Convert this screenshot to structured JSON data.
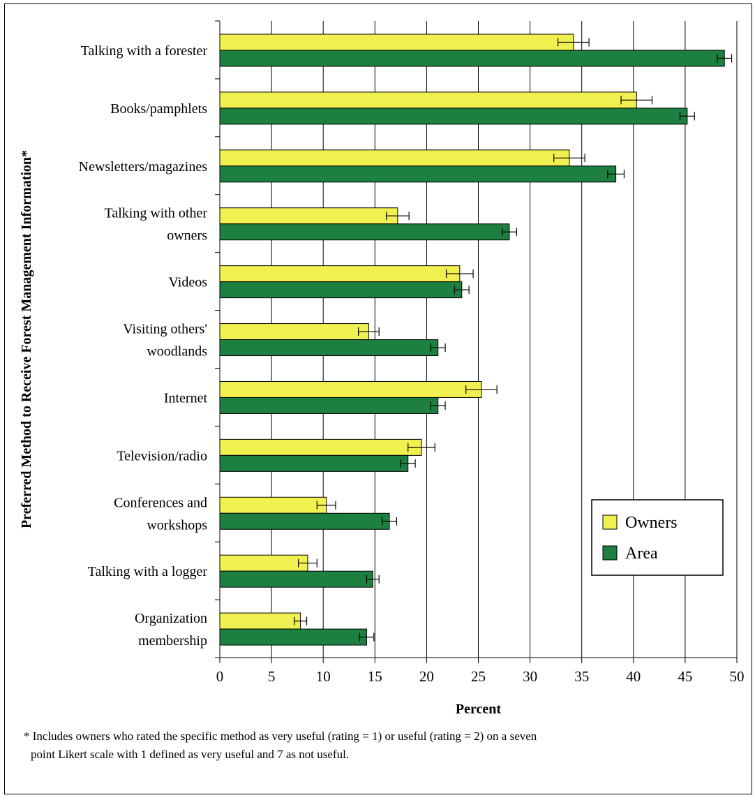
{
  "chart_data": {
    "type": "bar",
    "orientation": "horizontal",
    "ylabel": "Preferred Method to Receive Forest Management Information*",
    "xlabel": "Percent",
    "xlim": [
      0,
      50
    ],
    "xticks": [
      0,
      5,
      10,
      15,
      20,
      25,
      30,
      35,
      40,
      45,
      50
    ],
    "grid": "vertical",
    "legend_placement": "lower-right",
    "categories": [
      [
        "Talking with a forester"
      ],
      [
        "Books/pamphlets"
      ],
      [
        "Newsletters/magazines"
      ],
      [
        "Talking with other",
        "owners"
      ],
      [
        "Videos"
      ],
      [
        "Visiting others'",
        "woodlands"
      ],
      [
        "Internet"
      ],
      [
        "Television/radio"
      ],
      [
        "Conferences and",
        "workshops"
      ],
      [
        "Talking with a logger"
      ],
      [
        "Organization",
        "membership"
      ]
    ],
    "series": [
      {
        "name": "Owners",
        "color": "#f0f050",
        "values": [
          34.2,
          40.3,
          33.8,
          17.2,
          23.2,
          14.4,
          25.3,
          19.5,
          10.3,
          8.5,
          7.8
        ],
        "errors": [
          1.5,
          1.5,
          1.5,
          1.1,
          1.3,
          1.0,
          1.5,
          1.3,
          0.9,
          0.9,
          0.6
        ]
      },
      {
        "name": "Area",
        "color": "#1e8040",
        "values": [
          48.8,
          45.2,
          38.3,
          28.0,
          23.4,
          21.1,
          21.1,
          18.2,
          16.4,
          14.8,
          14.2
        ],
        "errors": [
          0.7,
          0.7,
          0.8,
          0.7,
          0.7,
          0.7,
          0.7,
          0.7,
          0.7,
          0.6,
          0.7
        ]
      }
    ]
  },
  "footnote": {
    "line1": "* Includes owners who rated the specific method as very useful (rating = 1) or useful (rating = 2) on a seven",
    "line2": "point Likert scale with 1 defined as very useful and 7 as not useful."
  }
}
